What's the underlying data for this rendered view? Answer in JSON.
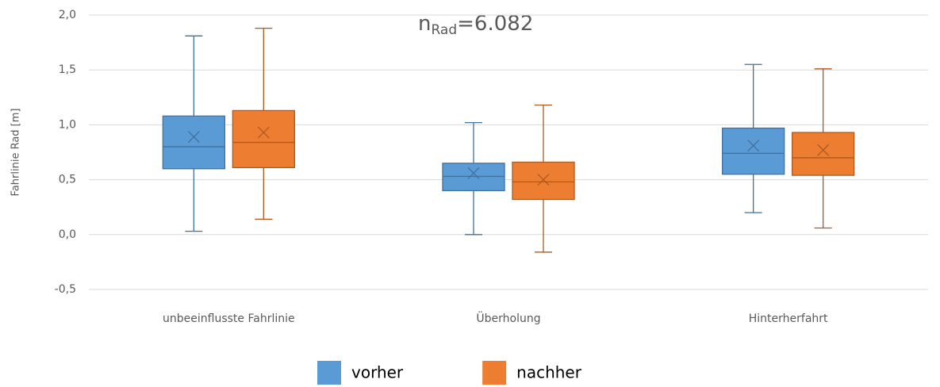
{
  "chart_data": {
    "type": "box",
    "annotation": {
      "main": "n",
      "subscript": "Rad",
      "rest": "=6.082"
    },
    "y_label": "Fahrlinie Rad [m]",
    "categories": [
      "unbeeinflusste Fahrlinie",
      "Überholung",
      "Hinterherfahrt"
    ],
    "series": [
      {
        "name": "vorher",
        "color": "#5b9bd5",
        "edge_color": "#41719c",
        "values": [
          {
            "min": 0.03,
            "q1": 0.6,
            "median": 0.8,
            "q3": 1.08,
            "max": 1.81,
            "mean": 0.89
          },
          {
            "min": 0.0,
            "q1": 0.4,
            "median": 0.53,
            "q3": 0.65,
            "max": 1.02,
            "mean": 0.56
          },
          {
            "min": 0.2,
            "q1": 0.55,
            "median": 0.74,
            "q3": 0.97,
            "max": 1.55,
            "mean": 0.81
          }
        ]
      },
      {
        "name": "nachher",
        "color": "#ed7d31",
        "edge_color": "#ae5a21",
        "values": [
          {
            "min": 0.14,
            "q1": 0.61,
            "median": 0.84,
            "q3": 1.13,
            "max": 1.88,
            "mean": 0.93
          },
          {
            "min": -0.16,
            "q1": 0.32,
            "median": 0.48,
            "q3": 0.66,
            "max": 1.18,
            "mean": 0.5
          },
          {
            "min": 0.06,
            "q1": 0.54,
            "median": 0.7,
            "q3": 0.93,
            "max": 1.51,
            "mean": 0.77
          }
        ]
      }
    ],
    "ylim": [
      -0.5,
      2.0
    ],
    "yticks": [
      {
        "value": -0.5,
        "label": "-0,5"
      },
      {
        "value": 0,
        "label": "0,0"
      },
      {
        "value": 0.5,
        "label": "0,5"
      },
      {
        "value": 1.0,
        "label": "1,0"
      },
      {
        "value": 1.5,
        "label": "1,5"
      },
      {
        "value": 2.0,
        "label": "2,0"
      }
    ],
    "grid": true,
    "legend": "bottom"
  }
}
